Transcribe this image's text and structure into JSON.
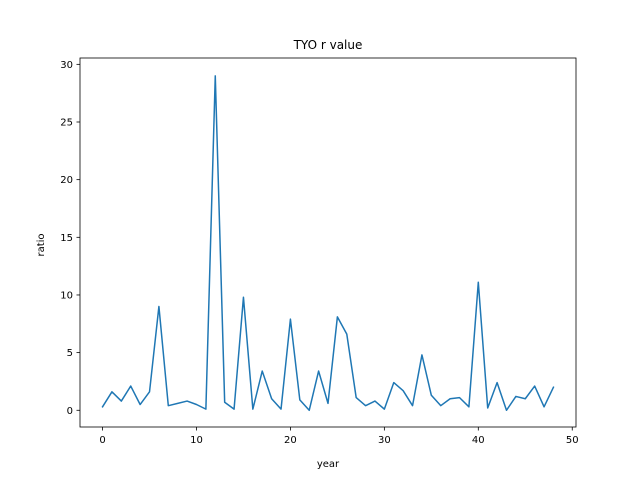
{
  "chart_data": {
    "type": "line",
    "title": "TYO r value",
    "xlabel": "year",
    "ylabel": "ratio",
    "xlim": [
      -2.4,
      50.4
    ],
    "ylim": [
      -1.45,
      30.55
    ],
    "xticks": [
      0,
      10,
      20,
      30,
      40,
      50
    ],
    "xtick_labels": [
      "0",
      "10",
      "20",
      "30",
      "40",
      "50"
    ],
    "yticks": [
      0,
      5,
      10,
      15,
      20,
      25,
      30
    ],
    "ytick_labels": [
      "0",
      "5",
      "10",
      "15",
      "20",
      "25",
      "30"
    ],
    "grid": false,
    "legend": false,
    "colors": {
      "line": "#1f77b4"
    },
    "series": [
      {
        "x": [
          0,
          1,
          2,
          3,
          4,
          5,
          6,
          7,
          8,
          9,
          10,
          11,
          12,
          13,
          14,
          15,
          16,
          17,
          18,
          19,
          20,
          21,
          22,
          23,
          24,
          25,
          26,
          27,
          28,
          29,
          30,
          31,
          32,
          33,
          34,
          35,
          36,
          37,
          38,
          39,
          40,
          41,
          42,
          43,
          44,
          45,
          46,
          47,
          48
        ],
        "values": [
          0.3,
          1.6,
          0.8,
          2.1,
          0.5,
          1.6,
          9.0,
          0.4,
          0.6,
          0.8,
          0.5,
          0.1,
          29.0,
          0.7,
          0.1,
          9.8,
          0.1,
          3.4,
          1.0,
          0.1,
          7.9,
          0.9,
          0.0,
          3.4,
          0.6,
          8.1,
          6.6,
          1.1,
          0.4,
          0.8,
          0.1,
          2.4,
          1.7,
          0.4,
          4.8,
          1.3,
          0.4,
          1.0,
          1.1,
          0.3,
          11.1,
          0.2,
          2.4,
          0.0,
          1.2,
          1.0,
          2.1,
          0.3,
          2.0
        ]
      }
    ]
  }
}
